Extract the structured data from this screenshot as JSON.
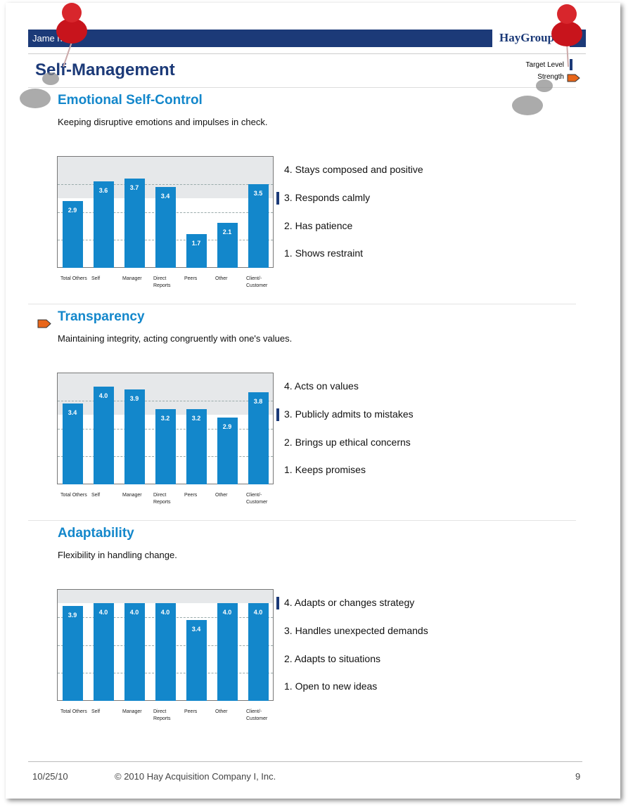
{
  "header": {
    "name": "Jame ne -",
    "logo": "HayGroup",
    "title": "Self-Management",
    "legend": {
      "target": "Target Level",
      "strength": "Strength"
    }
  },
  "sections": [
    {
      "title": "Emotional Self-Control",
      "description": "Keeping disruptive emotions and impulses in check.",
      "strength": false,
      "target_level": 3,
      "chart": {
        "categories": [
          "Total Others",
          "Self",
          "Manager",
          "Direct Reports",
          "Peers",
          "Other",
          "Client/-Customer"
        ],
        "values": [
          2.9,
          3.6,
          3.7,
          3.4,
          1.7,
          2.1,
          3.5
        ],
        "value_labels": [
          "2.9",
          "3.6",
          "3.7",
          "3.4",
          "1.7",
          "2.1",
          "3.5"
        ],
        "ylim": [
          0.5,
          4.5
        ],
        "gridlines": [
          1.5,
          2.5,
          3.5
        ],
        "color": "#1387cb"
      },
      "levels": [
        "4. Stays composed and positive",
        "3. Responds calmly",
        "2. Has patience",
        "1. Shows restraint"
      ]
    },
    {
      "title": "Transparency",
      "description": "Maintaining integrity, acting congruently with one's values.",
      "strength": true,
      "target_level": 3,
      "chart": {
        "categories": [
          "Total Others",
          "Self",
          "Manager",
          "Direct Reports",
          "Peers",
          "Other",
          "Client/-Customer"
        ],
        "values": [
          3.4,
          4.0,
          3.9,
          3.2,
          3.2,
          2.9,
          3.8
        ],
        "value_labels": [
          "3.4",
          "4.0",
          "3.9",
          "3.2",
          "3.2",
          "2.9",
          "3.8"
        ],
        "ylim": [
          0.5,
          4.5
        ],
        "gridlines": [
          1.5,
          2.5,
          3.5
        ],
        "color": "#1387cb"
      },
      "levels": [
        "4. Acts on values",
        "3. Publicly admits to mistakes",
        "2. Brings up ethical concerns",
        "1. Keeps promises"
      ]
    },
    {
      "title": "Adaptability",
      "description": "Flexibility in handling change.",
      "strength": false,
      "target_level": 4,
      "chart": {
        "categories": [
          "Total Others",
          "Self",
          "Manager",
          "Direct Reports",
          "Peers",
          "Other",
          "Client/-Customer"
        ],
        "values": [
          3.9,
          4.0,
          4.0,
          4.0,
          3.4,
          4.0,
          4.0
        ],
        "value_labels": [
          "3.9",
          "4.0",
          "4.0",
          "4.0",
          "3.4",
          "4.0",
          "4.0"
        ],
        "ylim": [
          0.5,
          4.5
        ],
        "gridlines": [
          1.5,
          2.5,
          3.5
        ],
        "color": "#1387cb"
      },
      "levels": [
        "4. Adapts or changes strategy",
        "3. Handles unexpected demands",
        "2. Adapts to situations",
        "1. Open to new ideas"
      ]
    }
  ],
  "footer": {
    "date": "10/25/10",
    "copyright": "© 2010 Hay Acquisition Company I, Inc.",
    "page": "9"
  }
}
